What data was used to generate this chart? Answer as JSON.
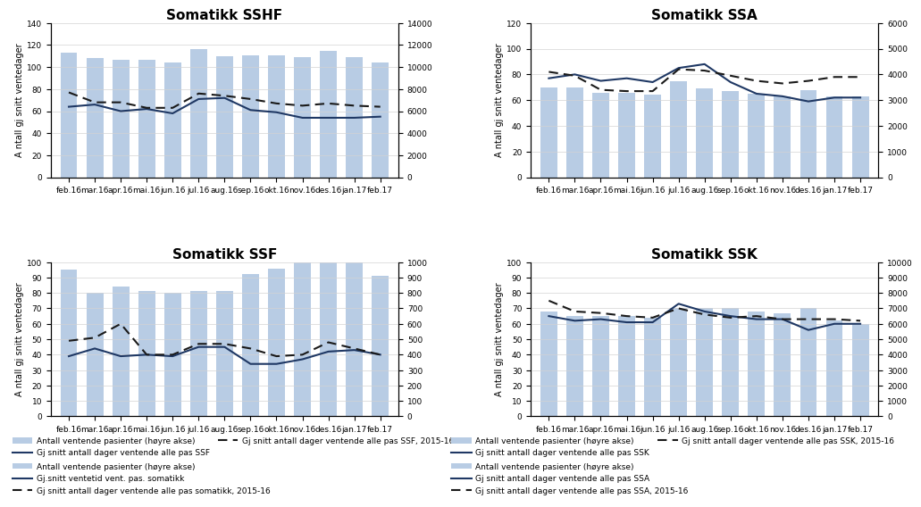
{
  "months": [
    "feb.16",
    "mar.16",
    "apr.16",
    "mai.16",
    "jun.16",
    "jul.16",
    "aug.16",
    "sep.16",
    "okt.16",
    "nov.16",
    "des.16",
    "jan.17",
    "feb.17"
  ],
  "sshf": {
    "title": "Somatikk SSHF",
    "bars": [
      11300,
      10800,
      10700,
      10700,
      10400,
      11600,
      11000,
      11100,
      11100,
      10900,
      11500,
      10900,
      10400
    ],
    "line_solid": [
      64,
      66,
      60,
      62,
      58,
      71,
      72,
      61,
      59,
      54,
      54,
      54,
      55
    ],
    "line_dashed": [
      77,
      68,
      68,
      63,
      63,
      76,
      74,
      71,
      67,
      65,
      67,
      65,
      64
    ],
    "ylim_left": [
      0,
      140
    ],
    "ylim_right": [
      0,
      14000
    ],
    "yticks_left": [
      0,
      20,
      40,
      60,
      80,
      100,
      120,
      140
    ],
    "yticks_right": [
      0,
      2000,
      4000,
      6000,
      8000,
      10000,
      12000,
      14000
    ],
    "legend1": "Antall ventende pasienter (høyre akse)",
    "legend2": "Gj.snitt ventetid vent. pas. somatikk",
    "legend3": "Gj snitt antall dager ventende alle pas somatikk, 2015-16",
    "legend_ncol": 1
  },
  "ssa": {
    "title": "Somatikk SSA",
    "bars": [
      3500,
      3500,
      3300,
      3300,
      3200,
      3750,
      3450,
      3350,
      3250,
      3150,
      3400,
      3150,
      3150
    ],
    "line_solid": [
      77,
      80,
      75,
      77,
      74,
      85,
      88,
      74,
      65,
      63,
      59,
      62,
      62
    ],
    "line_dashed": [
      82,
      79,
      68,
      67,
      67,
      84,
      83,
      79,
      75,
      73,
      75,
      78,
      78
    ],
    "ylim_left": [
      0,
      120
    ],
    "ylim_right": [
      0,
      6000
    ],
    "yticks_left": [
      0,
      20,
      40,
      60,
      80,
      100,
      120
    ],
    "yticks_right": [
      0,
      1000,
      2000,
      3000,
      4000,
      5000,
      6000
    ],
    "legend1": "Antall ventende pasienter (høyre akse)",
    "legend2": "Gj snitt antall dager ventende alle pas SSA",
    "legend3": "Gj snitt antall dager ventende alle pas SSA, 2015-16",
    "legend_ncol": 1
  },
  "ssf": {
    "title": "Somatikk SSF",
    "bars": [
      950,
      800,
      840,
      810,
      800,
      810,
      810,
      920,
      960,
      1000,
      1000,
      1000,
      910
    ],
    "line_solid": [
      39,
      44,
      39,
      40,
      39,
      45,
      45,
      34,
      34,
      37,
      42,
      43,
      40
    ],
    "line_dashed": [
      49,
      51,
      60,
      40,
      40,
      47,
      47,
      44,
      39,
      40,
      48,
      44,
      40
    ],
    "ylim_left": [
      0,
      100
    ],
    "ylim_right": [
      0,
      1000
    ],
    "yticks_left": [
      0,
      10,
      20,
      30,
      40,
      50,
      60,
      70,
      80,
      90,
      100
    ],
    "yticks_right": [
      0,
      100,
      200,
      300,
      400,
      500,
      600,
      700,
      800,
      900,
      1000
    ],
    "legend1": "Antall ventende pasienter (høyre akse)",
    "legend2": "Gj snitt antall dager ventende alle pas SSF",
    "legend3": "Gj snitt antall dager ventende alle pas SSF, 2015-16",
    "legend_ncol": 1
  },
  "ssk": {
    "title": "Somatikk SSK",
    "bars": [
      6800,
      6500,
      6500,
      6500,
      6400,
      7000,
      7000,
      7000,
      6800,
      6700,
      7000,
      6200,
      6000
    ],
    "line_solid": [
      65,
      62,
      63,
      61,
      61,
      73,
      68,
      65,
      63,
      63,
      56,
      60,
      60
    ],
    "line_dashed": [
      75,
      68,
      67,
      65,
      64,
      70,
      66,
      64,
      65,
      63,
      63,
      63,
      62
    ],
    "ylim_left": [
      0,
      100
    ],
    "ylim_right": [
      0,
      10000
    ],
    "yticks_left": [
      0,
      10,
      20,
      30,
      40,
      50,
      60,
      70,
      80,
      90,
      100
    ],
    "yticks_right": [
      0,
      1000,
      2000,
      3000,
      4000,
      5000,
      6000,
      7000,
      8000,
      9000,
      10000
    ],
    "legend1": "Antall ventende pasienter (høyre akse)",
    "legend2": "Gj snitt antall dager ventende alle pas SSK",
    "legend3": "Gj snitt antall dager ventende alle pas SSK, 2015-16",
    "legend_ncol": 1
  },
  "bar_color": "#b8cce4",
  "line_solid_color": "#1f3864",
  "line_dashed_color": "#1a1a1a",
  "ylabel": "A ntall gj snitt ventedager",
  "title_fontsize": 11,
  "tick_fontsize": 6.5,
  "legend_fontsize": 6.5,
  "ylabel_fontsize": 7
}
